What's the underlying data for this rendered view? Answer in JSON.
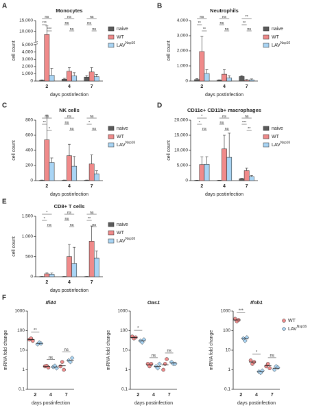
{
  "chart_data": [
    {
      "type": "bar",
      "panel": "A",
      "title": "Monocytes",
      "x_label": "days postinfection",
      "y_label": "cell count",
      "categories": [
        "2",
        "4",
        "7"
      ],
      "series": [
        {
          "name": "naive",
          "color": "#5b5b5b",
          "values": [
            100,
            250,
            550
          ],
          "errors": [
            60,
            120,
            200
          ]
        },
        {
          "name": "WT",
          "color": "#f08a8a",
          "values": [
            8500,
            1350,
            1250
          ],
          "errors": [
            4000,
            500,
            600
          ]
        },
        {
          "name": "LAV",
          "superscript": "Nsp16",
          "color": "#a9d5f5",
          "values": [
            800,
            700,
            600
          ],
          "errors": [
            950,
            450,
            300
          ]
        }
      ],
      "ylim": [
        0,
        15000
      ],
      "broken_axis": true,
      "yticks": [
        0,
        {
          "value": 1000,
          "label": "1,000"
        },
        {
          "value": 2000,
          "label": "2,000"
        },
        {
          "value": 3000,
          "label": "3,000"
        },
        {
          "value": 4000,
          "label": "4,000"
        },
        {
          "value": 5000,
          "label": "5,000"
        },
        {
          "value": 10000,
          "label": "10,000"
        },
        {
          "value": 15000,
          "label": "15,000"
        }
      ],
      "significance": [
        {
          "category": "2",
          "pair": [
            "naive",
            "LAV"
          ],
          "label": "ns"
        },
        {
          "category": "2",
          "pair": [
            "naive",
            "WT"
          ],
          "label": "***"
        },
        {
          "category": "2",
          "pair": [
            "WT",
            "LAV"
          ],
          "label": "***"
        },
        {
          "category": "4",
          "pair": [
            "naive",
            "LAV"
          ],
          "label": "ns"
        },
        {
          "category": "4",
          "pair": [
            "naive",
            "WT"
          ],
          "label": "ns"
        },
        {
          "category": "4",
          "pair": [
            "WT",
            "LAV"
          ],
          "label": "ns"
        },
        {
          "category": "7",
          "pair": [
            "naive",
            "LAV"
          ],
          "label": "ns"
        },
        {
          "category": "7",
          "pair": [
            "naive",
            "WT"
          ],
          "label": "ns"
        },
        {
          "category": "7",
          "pair": [
            "WT",
            "LAV"
          ],
          "label": "ns"
        }
      ]
    },
    {
      "type": "bar",
      "panel": "B",
      "title": "Neutrophils",
      "x_label": "days postinfection",
      "y_label": "cell count",
      "categories": [
        "2",
        "4",
        "7"
      ],
      "series": [
        {
          "name": "naive",
          "color": "#5b5b5b",
          "values": [
            100,
            50,
            300
          ],
          "errors": [
            60,
            30,
            60
          ]
        },
        {
          "name": "WT",
          "color": "#f08a8a",
          "values": [
            1950,
            450,
            50
          ],
          "errors": [
            1000,
            300,
            50
          ]
        },
        {
          "name": "LAV",
          "superscript": "Nsp16",
          "color": "#a9d5f5",
          "values": [
            500,
            200,
            80
          ],
          "errors": [
            250,
            150,
            60
          ]
        }
      ],
      "ylim": [
        0,
        4000
      ],
      "yticks": [
        0,
        {
          "value": 1000,
          "label": "1,000"
        },
        {
          "value": 2000,
          "label": "2,000"
        },
        {
          "value": 3000,
          "label": "3,000"
        },
        {
          "value": 4000,
          "label": "4,000"
        }
      ],
      "significance": [
        {
          "category": "2",
          "pair": [
            "naive",
            "LAV"
          ],
          "label": "ns"
        },
        {
          "category": "2",
          "pair": [
            "naive",
            "WT"
          ],
          "label": "**"
        },
        {
          "category": "2",
          "pair": [
            "WT",
            "LAV"
          ],
          "label": "**"
        },
        {
          "category": "4",
          "pair": [
            "naive",
            "LAV"
          ],
          "label": "ns"
        },
        {
          "category": "4",
          "pair": [
            "naive",
            "WT"
          ],
          "label": "ns"
        },
        {
          "category": "4",
          "pair": [
            "WT",
            "LAV"
          ],
          "label": "ns"
        },
        {
          "category": "7",
          "pair": [
            "naive",
            "LAV"
          ],
          "label": "**"
        },
        {
          "category": "7",
          "pair": [
            "naive",
            "WT"
          ],
          "label": "**"
        },
        {
          "category": "7",
          "pair": [
            "WT",
            "LAV"
          ],
          "label": "ns"
        }
      ]
    },
    {
      "type": "bar",
      "panel": "C",
      "title": "NK cells",
      "x_label": "days postinfection",
      "y_label": "cell count",
      "categories": [
        "2",
        "4",
        "7"
      ],
      "series": [
        {
          "name": "naive",
          "color": "#5b5b5b",
          "values": [
            5,
            5,
            5
          ],
          "errors": [
            3,
            3,
            3
          ]
        },
        {
          "name": "WT",
          "color": "#f08a8a",
          "values": [
            540,
            330,
            220
          ],
          "errors": [
            330,
            150,
            120
          ]
        },
        {
          "name": "LAV",
          "superscript": "Nsp16",
          "color": "#a9d5f5",
          "values": [
            240,
            190,
            90
          ],
          "errors": [
            60,
            130,
            40
          ]
        }
      ],
      "ylim": [
        0,
        800
      ],
      "yticks": [
        0,
        200,
        400,
        600,
        800
      ],
      "significance": [
        {
          "category": "2",
          "pair": [
            "naive",
            "LAV"
          ],
          "label": "ns"
        },
        {
          "category": "2",
          "pair": [
            "naive",
            "WT"
          ],
          "label": "**"
        },
        {
          "category": "2",
          "pair": [
            "WT",
            "LAV"
          ],
          "label": "*"
        },
        {
          "category": "4",
          "pair": [
            "naive",
            "LAV"
          ],
          "label": "ns"
        },
        {
          "category": "4",
          "pair": [
            "naive",
            "WT"
          ],
          "label": "ns"
        },
        {
          "category": "4",
          "pair": [
            "WT",
            "LAV"
          ],
          "label": "ns"
        },
        {
          "category": "7",
          "pair": [
            "naive",
            "LAV"
          ],
          "label": "ns"
        },
        {
          "category": "7",
          "pair": [
            "naive",
            "WT"
          ],
          "label": "*"
        },
        {
          "category": "7",
          "pair": [
            "WT",
            "LAV"
          ],
          "label": "ns"
        }
      ]
    },
    {
      "type": "bar",
      "panel": "D",
      "title": "CD11c+ CD11b+ macrophages",
      "x_label": "days postinfection",
      "y_label": "cell count",
      "categories": [
        "2",
        "4",
        "7"
      ],
      "series": [
        {
          "name": "naive",
          "color": "#5b5b5b",
          "values": [
            100,
            100,
            600
          ],
          "errors": [
            60,
            60,
            150
          ]
        },
        {
          "name": "WT",
          "color": "#f08a8a",
          "values": [
            5300,
            10500,
            3300
          ],
          "errors": [
            2500,
            4500,
            800
          ]
        },
        {
          "name": "LAV",
          "superscript": "Nsp16",
          "color": "#a9d5f5",
          "values": [
            5400,
            7700,
            1300
          ],
          "errors": [
            2500,
            8000,
            400
          ]
        }
      ],
      "ylim": [
        0,
        20000
      ],
      "yticks": [
        0,
        {
          "value": 5000,
          "label": "5,000"
        },
        {
          "value": 10000,
          "label": "10,000"
        },
        {
          "value": 15000,
          "label": "15,000"
        },
        {
          "value": 20000,
          "label": "20,000"
        }
      ],
      "significance": [
        {
          "category": "2",
          "pair": [
            "naive",
            "LAV"
          ],
          "label": "*"
        },
        {
          "category": "2",
          "pair": [
            "naive",
            "WT"
          ],
          "label": "*"
        },
        {
          "category": "2",
          "pair": [
            "WT",
            "LAV"
          ],
          "label": "ns"
        },
        {
          "category": "4",
          "pair": [
            "naive",
            "LAV"
          ],
          "label": "ns"
        },
        {
          "category": "4",
          "pair": [
            "naive",
            "WT"
          ],
          "label": "ns"
        },
        {
          "category": "4",
          "pair": [
            "WT",
            "LAV"
          ],
          "label": "ns"
        },
        {
          "category": "7",
          "pair": [
            "naive",
            "LAV"
          ],
          "label": "ns"
        },
        {
          "category": "7",
          "pair": [
            "naive",
            "WT"
          ],
          "label": "***"
        },
        {
          "category": "7",
          "pair": [
            "WT",
            "LAV"
          ],
          "label": "**"
        }
      ]
    },
    {
      "type": "bar",
      "panel": "E",
      "title": "CD8+ T cells",
      "x_label": "days postinfection",
      "y_label": "cell count",
      "categories": [
        "2",
        "4",
        "7"
      ],
      "series": [
        {
          "name": "naive",
          "color": "#5b5b5b",
          "values": [
            5,
            5,
            5
          ],
          "errors": [
            3,
            3,
            3
          ]
        },
        {
          "name": "WT",
          "color": "#f08a8a",
          "values": [
            70,
            500,
            880
          ],
          "errors": [
            30,
            300,
            380
          ]
        },
        {
          "name": "LAV",
          "superscript": "Nsp16",
          "color": "#a9d5f5",
          "values": [
            60,
            330,
            460
          ],
          "errors": [
            30,
            400,
            180
          ]
        }
      ],
      "ylim": [
        0,
        1500
      ],
      "yticks": [
        0,
        500,
        {
          "value": 1000,
          "label": "1,000"
        },
        {
          "value": 1500,
          "label": "1,500"
        }
      ],
      "significance": [
        {
          "category": "2",
          "pair": [
            "naive",
            "LAV"
          ],
          "label": "*"
        },
        {
          "category": "2",
          "pair": [
            "naive",
            "WT"
          ],
          "label": "*"
        },
        {
          "category": "2",
          "pair": [
            "WT",
            "LAV"
          ],
          "label": "ns"
        },
        {
          "category": "4",
          "pair": [
            "naive",
            "LAV"
          ],
          "label": "ns"
        },
        {
          "category": "4",
          "pair": [
            "naive",
            "WT"
          ],
          "label": "ns"
        },
        {
          "category": "4",
          "pair": [
            "WT",
            "LAV"
          ],
          "label": "ns"
        },
        {
          "category": "7",
          "pair": [
            "naive",
            "LAV"
          ],
          "label": "ns"
        },
        {
          "category": "7",
          "pair": [
            "naive",
            "WT"
          ],
          "label": "**"
        },
        {
          "category": "7",
          "pair": [
            "WT",
            "LAV"
          ],
          "label": "ns"
        }
      ]
    },
    {
      "type": "dot",
      "panel": "F",
      "title": "Ifi44",
      "x_label": "days postinfection",
      "y_label": "mRNA fold change",
      "categories": [
        "2",
        "4",
        "7"
      ],
      "log_scale": true,
      "legend": false,
      "series": [
        {
          "name": "WT",
          "color": "#f08a8a",
          "marker": "circle",
          "values": [
            [
              35,
              40,
              30
            ],
            [
              1.5,
              1.6,
              1.3
            ],
            [
              1.5,
              2.5,
              1.0
            ]
          ],
          "means": [
            35,
            1.5,
            1.6
          ]
        },
        {
          "name": "LAV",
          "superscript": "Nsp16",
          "color": "#a9d5f5",
          "marker": "diamond",
          "values": [
            [
              20,
              25,
              22
            ],
            [
              1.4,
              1.6,
              1.2
            ],
            [
              3,
              2.5,
              4
            ]
          ],
          "means": [
            22,
            1.4,
            3
          ]
        }
      ],
      "ylim": [
        0.1,
        1000
      ],
      "yticks": [
        0.1,
        1,
        10,
        100,
        1000
      ],
      "significance": [
        {
          "category": "2",
          "pair": [
            "WT",
            "LAV"
          ],
          "label": "**"
        },
        {
          "category": "4",
          "pair": [
            "WT",
            "LAV"
          ],
          "label": "ns"
        },
        {
          "category": "7",
          "pair": [
            "WT",
            "LAV"
          ],
          "label": "ns"
        }
      ]
    },
    {
      "type": "dot",
      "title": "Oas1",
      "x_label": "days postinfection",
      "y_label": "mRNA fold change",
      "categories": [
        "2",
        "4",
        "7"
      ],
      "log_scale": true,
      "legend": false,
      "series": [
        {
          "name": "WT",
          "color": "#f08a8a",
          "marker": "circle",
          "values": [
            [
              50,
              40,
              45
            ],
            [
              2,
              1.5,
              2
            ],
            [
              1,
              2,
              3.5
            ]
          ],
          "means": [
            45,
            1.8,
            1.8
          ]
        },
        {
          "name": "LAV",
          "superscript": "Nsp16",
          "color": "#a9d5f5",
          "marker": "diamond",
          "values": [
            [
              30,
              25,
              35
            ],
            [
              1.5,
              1.2,
              2
            ],
            [
              2.5,
              2,
              2
            ]
          ],
          "means": [
            30,
            1.5,
            2.2
          ]
        }
      ],
      "ylim": [
        0.1,
        1000
      ],
      "yticks": [
        0.1,
        1,
        10,
        100,
        1000
      ],
      "significance": [
        {
          "category": "2",
          "pair": [
            "WT",
            "LAV"
          ],
          "label": "*"
        },
        {
          "category": "4",
          "pair": [
            "WT",
            "LAV"
          ],
          "label": "ns"
        },
        {
          "category": "7",
          "pair": [
            "WT",
            "LAV"
          ],
          "label": "ns"
        }
      ]
    },
    {
      "type": "dot",
      "title": "Ifnb1",
      "x_label": "days postinfection",
      "y_label": "mRNA fold change",
      "categories": [
        "2",
        "4",
        "7"
      ],
      "log_scale": true,
      "legend": true,
      "series": [
        {
          "name": "WT",
          "color": "#f08a8a",
          "marker": "circle",
          "values": [
            [
              400,
              300,
              350
            ],
            [
              3,
              2,
              2.5
            ],
            [
              1.5,
              2,
              1.2
            ]
          ],
          "means": [
            350,
            2.5,
            1.6
          ]
        },
        {
          "name": "LAV",
          "superscript": "Nsp16",
          "color": "#a9d5f5",
          "marker": "diamond",
          "values": [
            [
              40,
              30,
              45
            ],
            [
              0.8,
              0.7,
              0.9
            ],
            [
              1,
              1.5,
              1.3
            ]
          ],
          "means": [
            38,
            0.8,
            1.2
          ]
        }
      ],
      "ylim": [
        0.1,
        1000
      ],
      "yticks": [
        0.1,
        1,
        10,
        100,
        1000
      ],
      "significance": [
        {
          "category": "2",
          "pair": [
            "WT",
            "LAV"
          ],
          "label": "***"
        },
        {
          "category": "4",
          "pair": [
            "WT",
            "LAV"
          ],
          "label": "*"
        },
        {
          "category": "7",
          "pair": [
            "WT",
            "LAV"
          ],
          "label": "ns"
        }
      ]
    }
  ]
}
